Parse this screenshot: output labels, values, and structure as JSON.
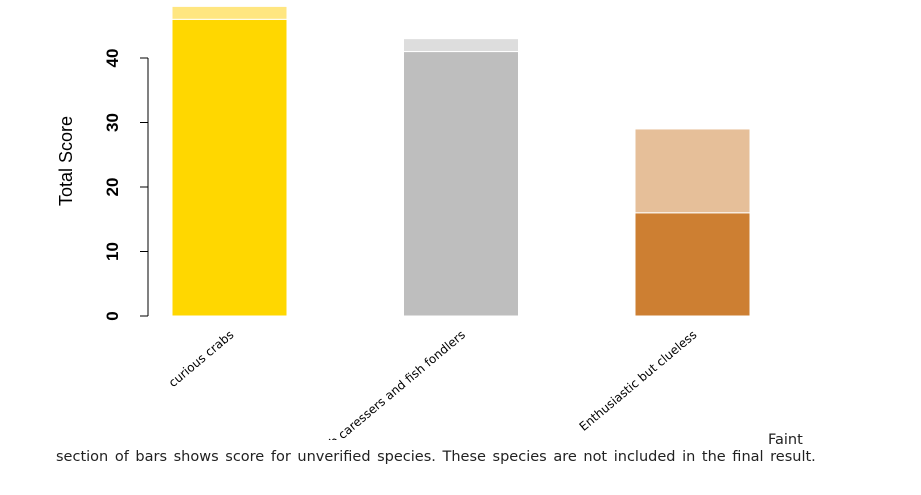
{
  "chart_data": {
    "type": "bar",
    "stacked": true,
    "categories": [
      "curious crabs",
      "Crab caressers and fish fondlers",
      "Enthusiastic but clueless"
    ],
    "series": [
      {
        "values": [
          46,
          41,
          16
        ]
      },
      {
        "values": [
          2,
          2,
          13
        ]
      }
    ],
    "colors": {
      "verified": [
        "#FFD700",
        "#BEBEBE",
        "#CD7F32"
      ],
      "unverified": [
        "#FFE680",
        "#DDDDDD",
        "#E6BF99"
      ]
    },
    "ylabel": "Total Score",
    "yticks": [
      0,
      10,
      20,
      30,
      40
    ],
    "ylim": [
      0,
      48
    ],
    "grid": false,
    "caption": "Faint section of bars shows score for unverified species.  These species are not included in the final result."
  }
}
